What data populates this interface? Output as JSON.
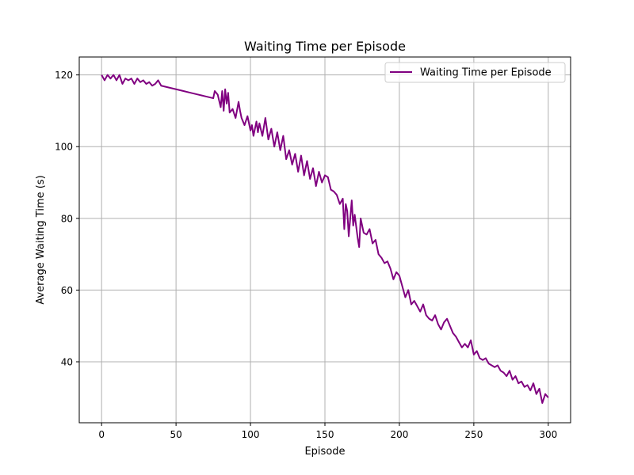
{
  "chart_data": {
    "type": "line",
    "title": "Waiting Time per Episode",
    "xlabel": "Episode",
    "ylabel": "Average Waiting Time (s)",
    "xlim": [
      -15,
      315
    ],
    "ylim": [
      23,
      125
    ],
    "xticks": [
      0,
      50,
      100,
      150,
      200,
      250,
      300
    ],
    "yticks": [
      40,
      60,
      80,
      100,
      120
    ],
    "grid": true,
    "legend_position": "top-right",
    "series": [
      {
        "name": "Waiting Time per Episode",
        "color": "#800080",
        "x": [
          0,
          2,
          4,
          6,
          8,
          10,
          12,
          14,
          16,
          18,
          20,
          22,
          24,
          26,
          28,
          30,
          32,
          34,
          36,
          38,
          40,
          45,
          50,
          55,
          60,
          65,
          70,
          75,
          76,
          78,
          80,
          81,
          82,
          83,
          84,
          85,
          86,
          88,
          90,
          92,
          93,
          94,
          96,
          98,
          100,
          101,
          102,
          104,
          105,
          106,
          108,
          110,
          112,
          114,
          116,
          118,
          120,
          122,
          124,
          126,
          128,
          130,
          132,
          134,
          136,
          138,
          140,
          142,
          144,
          146,
          148,
          150,
          152,
          154,
          156,
          158,
          160,
          162,
          163,
          164,
          165,
          166,
          168,
          169,
          170,
          172,
          173,
          174,
          176,
          178,
          180,
          182,
          184,
          186,
          188,
          190,
          192,
          194,
          196,
          198,
          200,
          202,
          204,
          206,
          208,
          210,
          212,
          214,
          216,
          218,
          220,
          222,
          224,
          226,
          228,
          230,
          232,
          234,
          236,
          238,
          240,
          242,
          244,
          246,
          248,
          250,
          252,
          254,
          256,
          258,
          260,
          262,
          264,
          266,
          268,
          270,
          272,
          274,
          276,
          278,
          280,
          282,
          284,
          286,
          288,
          290,
          292,
          294,
          296,
          298,
          300
        ],
        "y": [
          120,
          118.5,
          120,
          119,
          120,
          118.5,
          120,
          117.5,
          119,
          118.5,
          119,
          117.5,
          119,
          118,
          118.5,
          117.5,
          118,
          117,
          117.5,
          118.5,
          117,
          116.5,
          116,
          115.5,
          115,
          114.5,
          114,
          113.5,
          115.5,
          114.5,
          111,
          115.5,
          110,
          116,
          112,
          115,
          109.5,
          110.5,
          108,
          112.5,
          110,
          108,
          106,
          108.5,
          104.5,
          106,
          103,
          107,
          104,
          106.5,
          103,
          108,
          102,
          105,
          100,
          104,
          99,
          103,
          96.5,
          99,
          95,
          98,
          93,
          97.5,
          92,
          96,
          91,
          94,
          89,
          93,
          90,
          92,
          91.5,
          88,
          87.5,
          86.5,
          84,
          85.5,
          77,
          84,
          82,
          75,
          85,
          78,
          81,
          74.5,
          72,
          80,
          76,
          75.5,
          77,
          73,
          74,
          70,
          69,
          67.5,
          68,
          66,
          63,
          65,
          64,
          61,
          58,
          60,
          56,
          57,
          55.5,
          54,
          56,
          53,
          52,
          51.5,
          53,
          50.5,
          49,
          51,
          52,
          50,
          48,
          47,
          45.5,
          44,
          45,
          44,
          46,
          42,
          43,
          41,
          40.5,
          41,
          39.5,
          39,
          38.5,
          39,
          37.5,
          37,
          36,
          37.5,
          35,
          36,
          34,
          34.5,
          33,
          33.5,
          32,
          34,
          31,
          32.5,
          28.5,
          31,
          30
        ]
      }
    ]
  }
}
